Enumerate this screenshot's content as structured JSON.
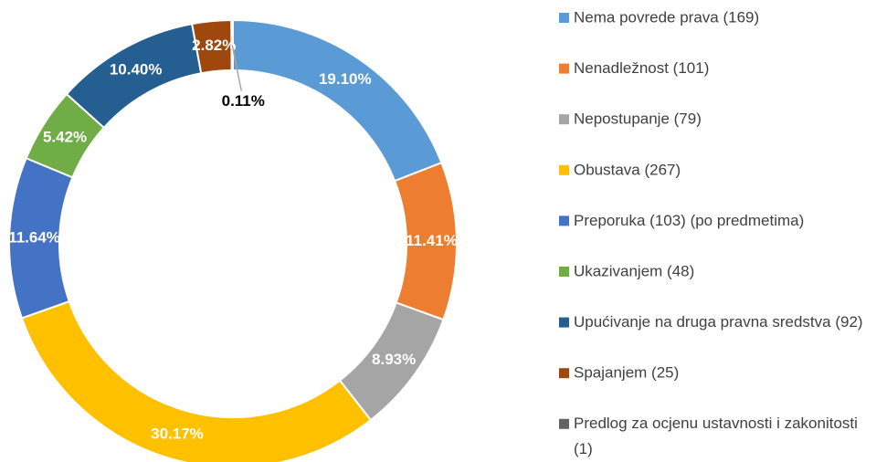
{
  "chart_data": {
    "type": "donut",
    "categories": [
      "Nema povrede prava (169)",
      "Nenadležnost (101)",
      "Nepostupanje (79)",
      "Obustava (267)",
      "Preporuka (103) (po predmetima)",
      "Ukazivanjem (48)",
      "Upućivanje na druga pravna sredstva (92)",
      "Spajanjem (25)",
      "Predlog za ocjenu ustavnosti i zakonitosti (1)"
    ],
    "values": [
      19.1,
      11.41,
      8.93,
      30.17,
      11.64,
      5.42,
      10.4,
      2.82,
      0.11
    ],
    "value_labels": [
      "19.10%",
      "11.41%",
      "8.93%",
      "30.17%",
      "11.64%",
      "5.42%",
      "10.40%",
      "2.82%",
      "0.11%"
    ],
    "colors": [
      "#5b9bd5",
      "#ed7d31",
      "#a5a5a5",
      "#ffc000",
      "#4472c4",
      "#70ad47",
      "#255e91",
      "#9e480e",
      "#636363"
    ],
    "legend": "right"
  }
}
